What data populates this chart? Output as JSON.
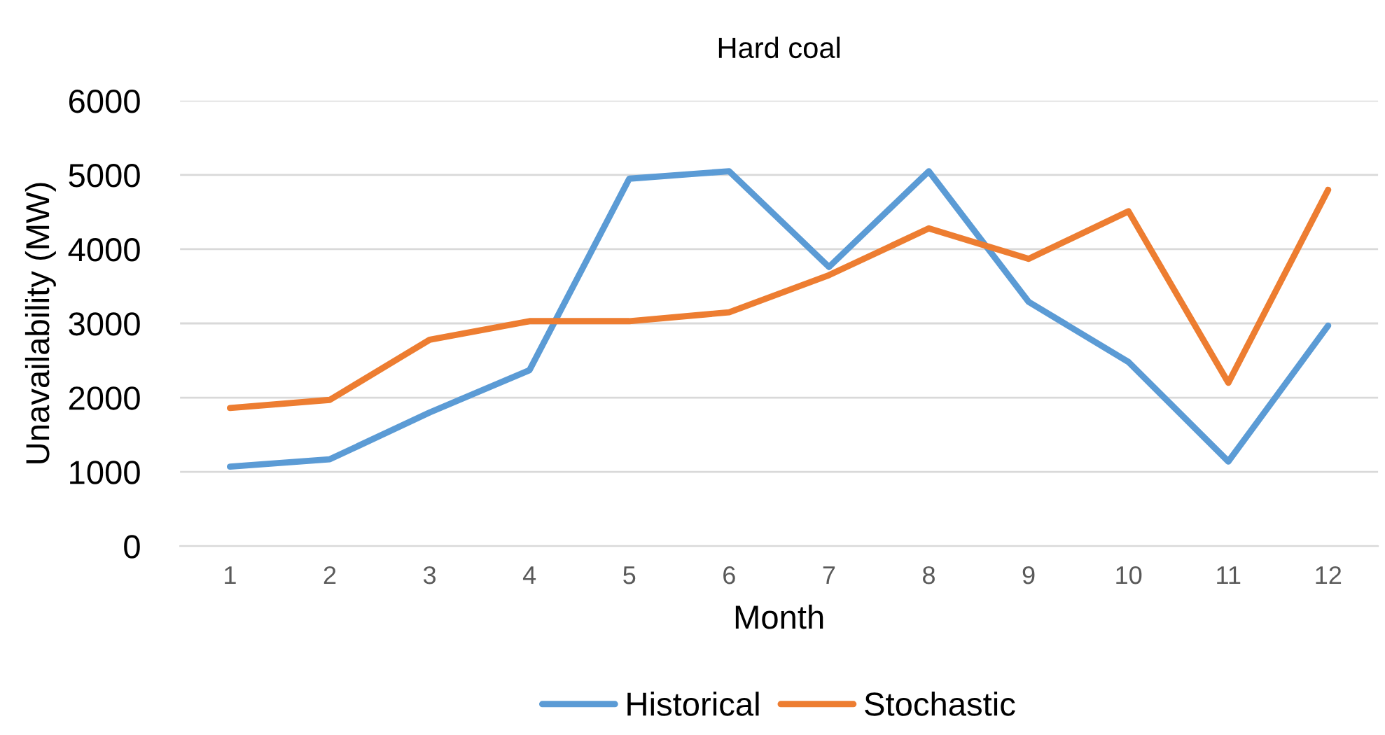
{
  "chart_data": {
    "type": "line",
    "title": "Hard coal",
    "xlabel": "Month",
    "ylabel": "Unavailability (MW)",
    "categories": [
      "1",
      "2",
      "3",
      "4",
      "5",
      "6",
      "7",
      "8",
      "9",
      "10",
      "11",
      "12"
    ],
    "series": [
      {
        "name": "Historical",
        "color": "#5b9bd5",
        "values": [
          1070,
          1170,
          1800,
          2370,
          4950,
          5050,
          3760,
          5050,
          3290,
          2480,
          1140,
          2970
        ]
      },
      {
        "name": "Stochastic",
        "color": "#ed7d31",
        "values": [
          1860,
          1970,
          2780,
          3030,
          3030,
          3150,
          3650,
          4280,
          3870,
          4510,
          2200,
          4800
        ]
      }
    ],
    "ylim": [
      0,
      6000
    ],
    "yticks": [
      0,
      1000,
      2000,
      3000,
      4000,
      5000,
      6000
    ],
    "grid": "y",
    "legend": "bottom",
    "marker": "none",
    "line_style": "solid"
  }
}
